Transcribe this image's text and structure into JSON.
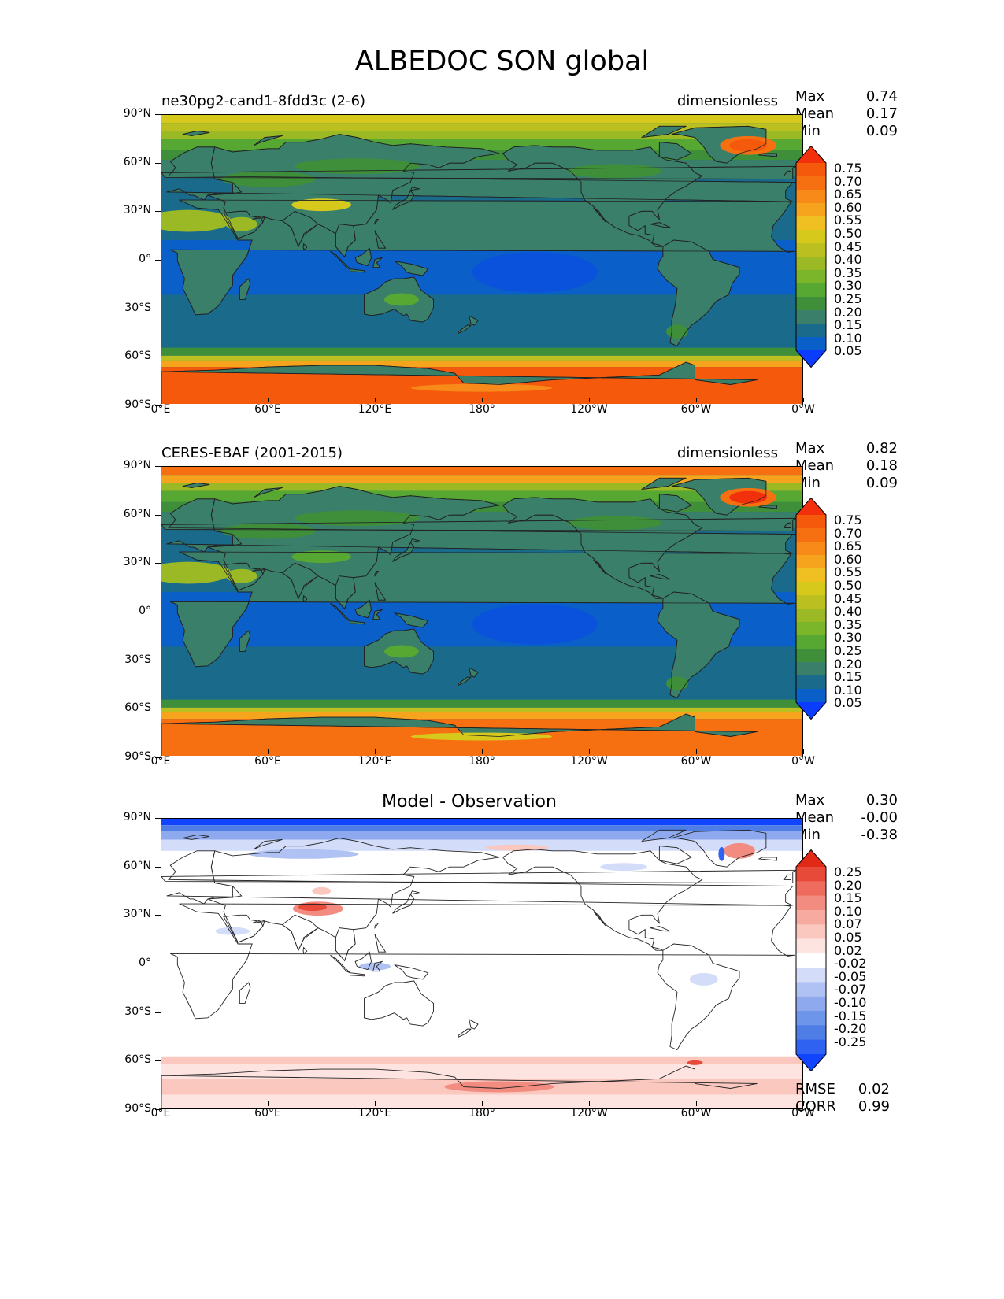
{
  "figure": {
    "title": "ALBEDOC SON global"
  },
  "axes": {
    "lat_ticks": [
      "90°N",
      "60°N",
      "30°N",
      "0°",
      "30°S",
      "60°S",
      "90°S"
    ],
    "lon_ticks": [
      "0°E",
      "60°E",
      "120°E",
      "180°",
      "120°W",
      "60°W",
      "0°W"
    ]
  },
  "panels": [
    {
      "left_title": "ne30pg2-cand1-8fdd3c (2-6)",
      "center_title": "",
      "right_title": "dimensionless",
      "stats": [
        {
          "label": "Max",
          "value": "0.74"
        },
        {
          "label": "Mean",
          "value": "0.17"
        },
        {
          "label": "Min",
          "value": "0.09"
        }
      ],
      "colorbar_labels": [
        "0.75",
        "0.70",
        "0.65",
        "0.60",
        "0.55",
        "0.50",
        "0.45",
        "0.40",
        "0.35",
        "0.30",
        "0.25",
        "0.20",
        "0.15",
        "0.10",
        "0.05"
      ],
      "colormap": "albedo"
    },
    {
      "left_title": "CERES-EBAF (2001-2015)",
      "center_title": "",
      "right_title": "dimensionless",
      "stats": [
        {
          "label": "Max",
          "value": "0.82"
        },
        {
          "label": "Mean",
          "value": "0.18"
        },
        {
          "label": "Min",
          "value": "0.09"
        }
      ],
      "colorbar_labels": [
        "0.75",
        "0.70",
        "0.65",
        "0.60",
        "0.55",
        "0.50",
        "0.45",
        "0.40",
        "0.35",
        "0.30",
        "0.25",
        "0.20",
        "0.15",
        "0.10",
        "0.05"
      ],
      "colormap": "albedo"
    },
    {
      "left_title": "",
      "center_title": "Model - Observation",
      "right_title": "",
      "stats": [
        {
          "label": "Max",
          "value": "0.30"
        },
        {
          "label": "Mean",
          "value": "-0.00"
        },
        {
          "label": "Min",
          "value": "-0.38"
        }
      ],
      "colorbar_labels": [
        "0.25",
        "0.20",
        "0.15",
        "0.10",
        "0.07",
        "0.05",
        "0.02",
        "-0.02",
        "-0.05",
        "-0.07",
        "-0.10",
        "-0.15",
        "-0.20",
        "-0.25"
      ],
      "colormap": "diff",
      "metrics": [
        {
          "label": "RMSE",
          "value": "0.02"
        },
        {
          "label": "CORR",
          "value": "0.99"
        }
      ]
    }
  ],
  "colors": {
    "albedo": [
      "#0a3dff",
      "#0b5fc8",
      "#1a6a8c",
      "#3a7f6a",
      "#3f8f3a",
      "#56a832",
      "#7bb52a",
      "#9ab925",
      "#bcbf20",
      "#d7c81c",
      "#f0c022",
      "#f6a31e",
      "#f78a18",
      "#f67012",
      "#f55a0c",
      "#f2310c"
    ],
    "diff": [
      "#1144ff",
      "#2f62f0",
      "#4e7de6",
      "#6d95ea",
      "#8ea9ee",
      "#b0c2f3",
      "#d3ddf9",
      "#ffffff",
      "#fde4e0",
      "#fbc8c0",
      "#f7aaa0",
      "#f38c80",
      "#ee6b5e",
      "#e84a3a",
      "#e02a16"
    ],
    "ocean_tropics": "#0b5fc8",
    "ocean_mid": "#1a6a8c",
    "land": "#3a7f6a",
    "coast": "#222222"
  }
}
